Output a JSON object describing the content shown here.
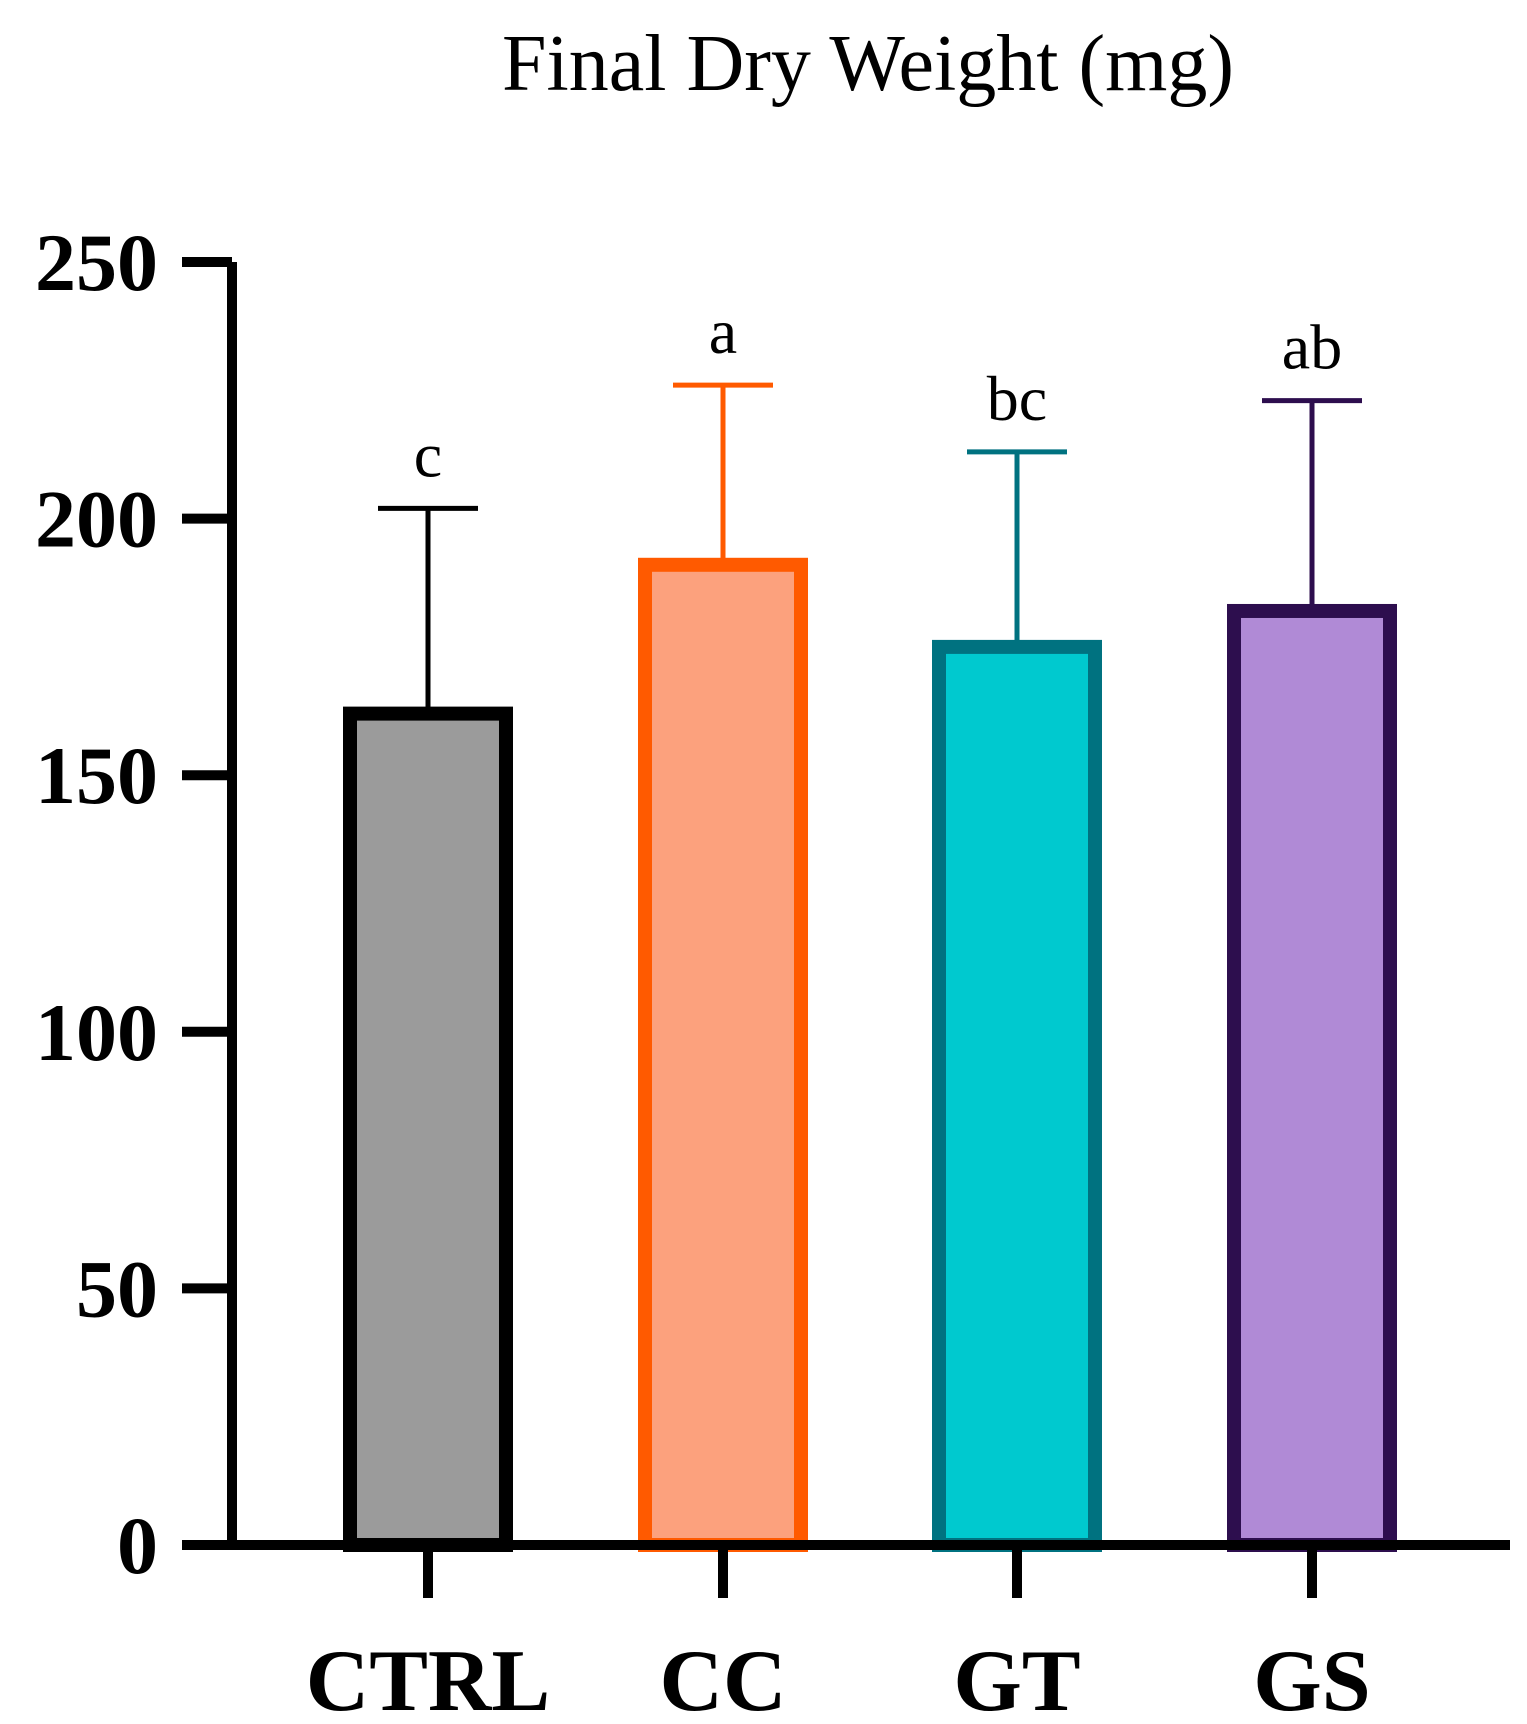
{
  "chart_data": {
    "type": "bar",
    "title": "Final Dry Weight (mg)",
    "xlabel": "",
    "ylabel": "",
    "ylim": [
      0,
      250
    ],
    "yticks": [
      0,
      50,
      100,
      150,
      200,
      250
    ],
    "grid": false,
    "categories": [
      "CTRL",
      "CC",
      "GT",
      "GS"
    ],
    "values": [
      162,
      191,
      175,
      182
    ],
    "error_upper": [
      202,
      226,
      213,
      223
    ],
    "significance_labels": [
      "c",
      "a",
      "bc",
      "ab"
    ],
    "fill_colors": [
      "#9b9b9b",
      "#fca17d",
      "#00c9cf",
      "#b08ad6"
    ],
    "edge_colors": [
      "#000000",
      "#ff5a00",
      "#007280",
      "#2d0e4e"
    ]
  }
}
